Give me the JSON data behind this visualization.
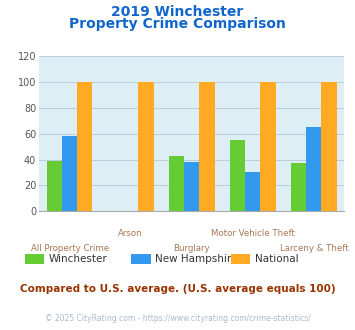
{
  "title_line1": "2019 Winchester",
  "title_line2": "Property Crime Comparison",
  "categories": [
    "All Property Crime",
    "Arson",
    "Burglary",
    "Motor Vehicle Theft",
    "Larceny & Theft"
  ],
  "series": {
    "Winchester": [
      39,
      0,
      43,
      55,
      37
    ],
    "New Hampshire": [
      58,
      0,
      38,
      30,
      65
    ],
    "National": [
      100,
      100,
      100,
      100,
      100
    ]
  },
  "colors": {
    "Winchester": "#66cc33",
    "New Hampshire": "#3399ee",
    "National": "#ffaa22"
  },
  "ylim": [
    0,
    120
  ],
  "yticks": [
    0,
    20,
    40,
    60,
    80,
    100,
    120
  ],
  "bar_width": 0.25,
  "plot_bg_color": "#ddeef5",
  "fig_bg_color": "#ffffff",
  "title_color": "#1166cc",
  "axis_label_color": "#aa7755",
  "grid_color": "#bbccdd",
  "legend_note": "Compared to U.S. average. (U.S. average equals 100)",
  "footer": "© 2025 CityRating.com - https://www.cityrating.com/crime-statistics/",
  "footer_color": "#aabbcc",
  "note_color": "#993300",
  "row1_labels": {
    "Arson": 1,
    "Motor Vehicle Theft": 3
  },
  "row2_labels": {
    "All Property Crime": 0,
    "Burglary": 2,
    "Larceny & Theft": 4
  }
}
